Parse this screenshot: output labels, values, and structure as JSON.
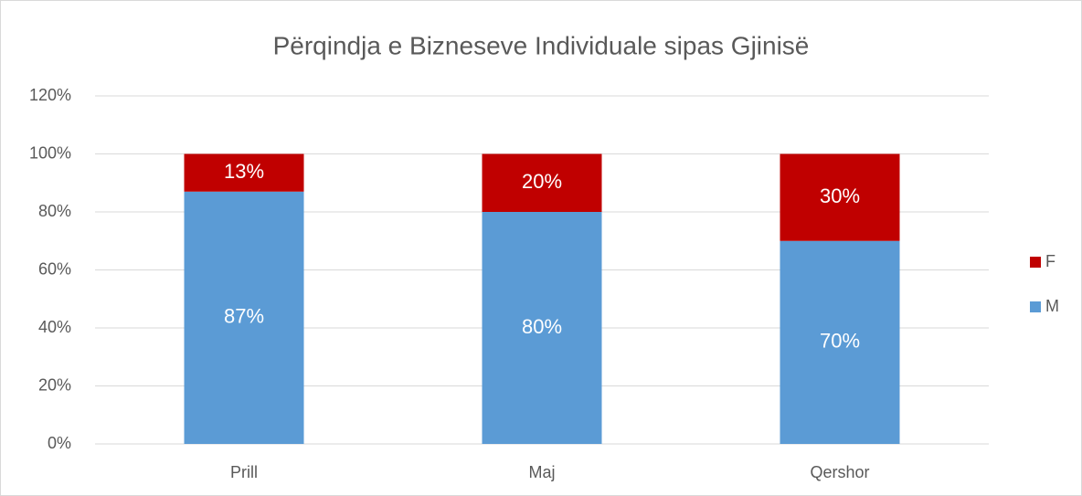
{
  "chart_data": {
    "type": "stacked_bar",
    "title": "Përqindja e Bizneseve Individuale sipas Gjinisë",
    "categories": [
      "Prill",
      "Maj",
      "Qershor"
    ],
    "series": [
      {
        "name": "M",
        "color": "#5b9bd5",
        "values": [
          87,
          80,
          70
        ],
        "value_labels": [
          "87%",
          "80%",
          "70%"
        ]
      },
      {
        "name": "F",
        "color": "#c00000",
        "values": [
          13,
          20,
          30
        ],
        "value_labels": [
          "13%",
          "20%",
          "30%"
        ]
      }
    ],
    "ylim": [
      0,
      120
    ],
    "yticks": [
      {
        "value": 0,
        "label": "0%"
      },
      {
        "value": 20,
        "label": "20%"
      },
      {
        "value": 40,
        "label": "40%"
      },
      {
        "value": 60,
        "label": "60%"
      },
      {
        "value": 80,
        "label": "80%"
      },
      {
        "value": 100,
        "label": "100%"
      },
      {
        "value": 120,
        "label": "120%"
      }
    ],
    "grid": true,
    "legend": "right"
  }
}
